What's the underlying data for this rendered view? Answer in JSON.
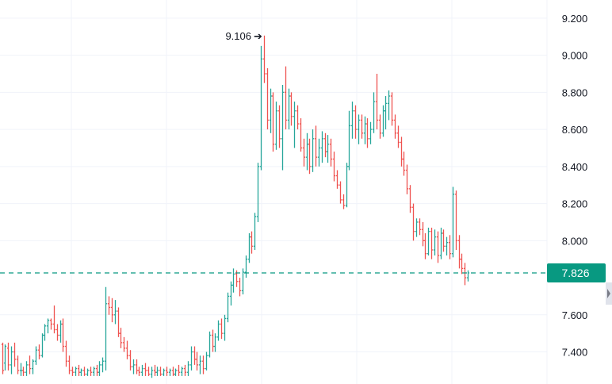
{
  "chart_data": {
    "type": "bar",
    "subtype": "ohlc",
    "colors": {
      "up": "#26a69a",
      "down": "#ef5350",
      "last_price": "#089981",
      "grid": "#f0f3fa",
      "text": "#131722"
    },
    "y_axis": {
      "ylim": [
        7.28,
        9.26
      ],
      "ticks": [
        "9.200",
        "9.000",
        "8.800",
        "8.600",
        "8.400",
        "8.200",
        "8.000",
        "7.600",
        "7.400"
      ],
      "position": "right"
    },
    "grid": true,
    "last_price": {
      "value": 7.826,
      "label": "7.826"
    },
    "peak": {
      "value": 9.106,
      "label": "9.106"
    },
    "bars": [
      {
        "o": 7.44,
        "h": 7.45,
        "l": 7.28,
        "c": 7.3
      },
      {
        "o": 7.34,
        "h": 7.44,
        "l": 7.3,
        "c": 7.43
      },
      {
        "o": 7.42,
        "h": 7.45,
        "l": 7.3,
        "c": 7.33
      },
      {
        "o": 7.33,
        "h": 7.43,
        "l": 7.28,
        "c": 7.4
      },
      {
        "o": 7.4,
        "h": 7.45,
        "l": 7.32,
        "c": 7.36
      },
      {
        "o": 7.36,
        "h": 7.38,
        "l": 7.28,
        "c": 7.3
      },
      {
        "o": 7.3,
        "h": 7.34,
        "l": 7.27,
        "c": 7.3
      },
      {
        "o": 7.3,
        "h": 7.32,
        "l": 7.27,
        "c": 7.29
      },
      {
        "o": 7.29,
        "h": 7.35,
        "l": 7.27,
        "c": 7.33
      },
      {
        "o": 7.33,
        "h": 7.38,
        "l": 7.28,
        "c": 7.31
      },
      {
        "o": 7.31,
        "h": 7.36,
        "l": 7.28,
        "c": 7.35
      },
      {
        "o": 7.35,
        "h": 7.43,
        "l": 7.33,
        "c": 7.41
      },
      {
        "o": 7.41,
        "h": 7.44,
        "l": 7.36,
        "c": 7.38
      },
      {
        "o": 7.38,
        "h": 7.5,
        "l": 7.37,
        "c": 7.49
      },
      {
        "o": 7.49,
        "h": 7.55,
        "l": 7.46,
        "c": 7.54
      },
      {
        "o": 7.54,
        "h": 7.58,
        "l": 7.5,
        "c": 7.57
      },
      {
        "o": 7.57,
        "h": 7.58,
        "l": 7.52,
        "c": 7.55
      },
      {
        "o": 7.55,
        "h": 7.65,
        "l": 7.5,
        "c": 7.52
      },
      {
        "o": 7.52,
        "h": 7.55,
        "l": 7.46,
        "c": 7.49
      },
      {
        "o": 7.49,
        "h": 7.57,
        "l": 7.45,
        "c": 7.55
      },
      {
        "o": 7.55,
        "h": 7.58,
        "l": 7.4,
        "c": 7.43
      },
      {
        "o": 7.43,
        "h": 7.46,
        "l": 7.32,
        "c": 7.35
      },
      {
        "o": 7.35,
        "h": 7.38,
        "l": 7.28,
        "c": 7.3
      },
      {
        "o": 7.3,
        "h": 7.32,
        "l": 7.27,
        "c": 7.29
      },
      {
        "o": 7.29,
        "h": 7.32,
        "l": 7.27,
        "c": 7.31
      },
      {
        "o": 7.31,
        "h": 7.33,
        "l": 7.27,
        "c": 7.29
      },
      {
        "o": 7.29,
        "h": 7.31,
        "l": 7.27,
        "c": 7.3
      },
      {
        "o": 7.3,
        "h": 7.32,
        "l": 7.27,
        "c": 7.28
      },
      {
        "o": 7.28,
        "h": 7.31,
        "l": 7.27,
        "c": 7.3
      },
      {
        "o": 7.3,
        "h": 7.32,
        "l": 7.27,
        "c": 7.29
      },
      {
        "o": 7.29,
        "h": 7.32,
        "l": 7.27,
        "c": 7.31
      },
      {
        "o": 7.31,
        "h": 7.33,
        "l": 7.27,
        "c": 7.29
      },
      {
        "o": 7.29,
        "h": 7.35,
        "l": 7.27,
        "c": 7.33
      },
      {
        "o": 7.33,
        "h": 7.37,
        "l": 7.29,
        "c": 7.35
      },
      {
        "o": 7.35,
        "h": 7.75,
        "l": 7.3,
        "c": 7.66
      },
      {
        "o": 7.66,
        "h": 7.7,
        "l": 7.6,
        "c": 7.64
      },
      {
        "o": 7.64,
        "h": 7.69,
        "l": 7.56,
        "c": 7.6
      },
      {
        "o": 7.6,
        "h": 7.68,
        "l": 7.55,
        "c": 7.62
      },
      {
        "o": 7.62,
        "h": 7.64,
        "l": 7.48,
        "c": 7.5
      },
      {
        "o": 7.5,
        "h": 7.53,
        "l": 7.42,
        "c": 7.45
      },
      {
        "o": 7.45,
        "h": 7.48,
        "l": 7.4,
        "c": 7.42
      },
      {
        "o": 7.42,
        "h": 7.46,
        "l": 7.36,
        "c": 7.38
      },
      {
        "o": 7.38,
        "h": 7.41,
        "l": 7.3,
        "c": 7.32
      },
      {
        "o": 7.32,
        "h": 7.36,
        "l": 7.28,
        "c": 7.33
      },
      {
        "o": 7.33,
        "h": 7.36,
        "l": 7.28,
        "c": 7.3
      },
      {
        "o": 7.3,
        "h": 7.32,
        "l": 7.27,
        "c": 7.29
      },
      {
        "o": 7.29,
        "h": 7.33,
        "l": 7.27,
        "c": 7.31
      },
      {
        "o": 7.31,
        "h": 7.34,
        "l": 7.27,
        "c": 7.3
      },
      {
        "o": 7.3,
        "h": 7.32,
        "l": 7.27,
        "c": 7.28
      },
      {
        "o": 7.28,
        "h": 7.32,
        "l": 7.26,
        "c": 7.3
      },
      {
        "o": 7.3,
        "h": 7.33,
        "l": 7.27,
        "c": 7.29
      },
      {
        "o": 7.29,
        "h": 7.32,
        "l": 7.27,
        "c": 7.3
      },
      {
        "o": 7.3,
        "h": 7.32,
        "l": 7.27,
        "c": 7.28
      },
      {
        "o": 7.28,
        "h": 7.31,
        "l": 7.27,
        "c": 7.3
      },
      {
        "o": 7.3,
        "h": 7.32,
        "l": 7.27,
        "c": 7.29
      },
      {
        "o": 7.29,
        "h": 7.31,
        "l": 7.27,
        "c": 7.3
      },
      {
        "o": 7.3,
        "h": 7.32,
        "l": 7.27,
        "c": 7.28
      },
      {
        "o": 7.28,
        "h": 7.31,
        "l": 7.27,
        "c": 7.3
      },
      {
        "o": 7.3,
        "h": 7.33,
        "l": 7.27,
        "c": 7.29
      },
      {
        "o": 7.29,
        "h": 7.32,
        "l": 7.27,
        "c": 7.31
      },
      {
        "o": 7.31,
        "h": 7.33,
        "l": 7.27,
        "c": 7.29
      },
      {
        "o": 7.29,
        "h": 7.35,
        "l": 7.27,
        "c": 7.33
      },
      {
        "o": 7.33,
        "h": 7.43,
        "l": 7.3,
        "c": 7.4
      },
      {
        "o": 7.4,
        "h": 7.43,
        "l": 7.33,
        "c": 7.36
      },
      {
        "o": 7.36,
        "h": 7.4,
        "l": 7.3,
        "c": 7.33
      },
      {
        "o": 7.33,
        "h": 7.38,
        "l": 7.28,
        "c": 7.35
      },
      {
        "o": 7.35,
        "h": 7.38,
        "l": 7.28,
        "c": 7.31
      },
      {
        "o": 7.31,
        "h": 7.4,
        "l": 7.3,
        "c": 7.38
      },
      {
        "o": 7.38,
        "h": 7.51,
        "l": 7.37,
        "c": 7.49
      },
      {
        "o": 7.49,
        "h": 7.52,
        "l": 7.4,
        "c": 7.43
      },
      {
        "o": 7.43,
        "h": 7.5,
        "l": 7.4,
        "c": 7.48
      },
      {
        "o": 7.48,
        "h": 7.57,
        "l": 7.46,
        "c": 7.55
      },
      {
        "o": 7.55,
        "h": 7.58,
        "l": 7.47,
        "c": 7.5
      },
      {
        "o": 7.5,
        "h": 7.6,
        "l": 7.46,
        "c": 7.58
      },
      {
        "o": 7.58,
        "h": 7.72,
        "l": 7.56,
        "c": 7.7
      },
      {
        "o": 7.7,
        "h": 7.78,
        "l": 7.65,
        "c": 7.76
      },
      {
        "o": 7.76,
        "h": 7.85,
        "l": 7.72,
        "c": 7.82
      },
      {
        "o": 7.82,
        "h": 7.84,
        "l": 7.75,
        "c": 7.78
      },
      {
        "o": 7.78,
        "h": 7.8,
        "l": 7.7,
        "c": 7.73
      },
      {
        "o": 7.73,
        "h": 7.85,
        "l": 7.71,
        "c": 7.83
      },
      {
        "o": 7.83,
        "h": 7.92,
        "l": 7.8,
        "c": 7.9
      },
      {
        "o": 7.9,
        "h": 8.04,
        "l": 7.88,
        "c": 8.02
      },
      {
        "o": 8.02,
        "h": 8.05,
        "l": 7.93,
        "c": 7.97
      },
      {
        "o": 7.97,
        "h": 8.15,
        "l": 7.95,
        "c": 8.13
      },
      {
        "o": 8.13,
        "h": 8.42,
        "l": 8.1,
        "c": 8.4
      },
      {
        "o": 8.4,
        "h": 9.05,
        "l": 8.38,
        "c": 8.98
      },
      {
        "o": 8.98,
        "h": 9.106,
        "l": 8.85,
        "c": 8.9
      },
      {
        "o": 8.9,
        "h": 8.93,
        "l": 8.6,
        "c": 8.65
      },
      {
        "o": 8.65,
        "h": 8.82,
        "l": 8.58,
        "c": 8.78
      },
      {
        "o": 8.78,
        "h": 8.8,
        "l": 8.48,
        "c": 8.52
      },
      {
        "o": 8.52,
        "h": 8.75,
        "l": 8.49,
        "c": 8.7
      },
      {
        "o": 8.7,
        "h": 8.73,
        "l": 8.5,
        "c": 8.55
      },
      {
        "o": 8.55,
        "h": 8.84,
        "l": 8.38,
        "c": 8.8
      },
      {
        "o": 8.8,
        "h": 8.94,
        "l": 8.6,
        "c": 8.65
      },
      {
        "o": 8.65,
        "h": 8.82,
        "l": 8.6,
        "c": 8.78
      },
      {
        "o": 8.78,
        "h": 8.8,
        "l": 8.62,
        "c": 8.67
      },
      {
        "o": 8.67,
        "h": 8.75,
        "l": 8.5,
        "c": 8.7
      },
      {
        "o": 8.7,
        "h": 8.73,
        "l": 8.6,
        "c": 8.63
      },
      {
        "o": 8.63,
        "h": 8.66,
        "l": 8.48,
        "c": 8.5
      },
      {
        "o": 8.5,
        "h": 8.55,
        "l": 8.4,
        "c": 8.45
      },
      {
        "o": 8.45,
        "h": 8.58,
        "l": 8.38,
        "c": 8.52
      },
      {
        "o": 8.52,
        "h": 8.55,
        "l": 8.36,
        "c": 8.4
      },
      {
        "o": 8.4,
        "h": 8.6,
        "l": 8.37,
        "c": 8.55
      },
      {
        "o": 8.55,
        "h": 8.62,
        "l": 8.4,
        "c": 8.45
      },
      {
        "o": 8.45,
        "h": 8.55,
        "l": 8.4,
        "c": 8.5
      },
      {
        "o": 8.5,
        "h": 8.59,
        "l": 8.42,
        "c": 8.55
      },
      {
        "o": 8.55,
        "h": 8.58,
        "l": 8.45,
        "c": 8.48
      },
      {
        "o": 8.48,
        "h": 8.57,
        "l": 8.42,
        "c": 8.52
      },
      {
        "o": 8.52,
        "h": 8.55,
        "l": 8.4,
        "c": 8.44
      },
      {
        "o": 8.44,
        "h": 8.48,
        "l": 8.32,
        "c": 8.35
      },
      {
        "o": 8.35,
        "h": 8.38,
        "l": 8.28,
        "c": 8.3
      },
      {
        "o": 8.3,
        "h": 8.32,
        "l": 8.2,
        "c": 8.22
      },
      {
        "o": 8.22,
        "h": 8.25,
        "l": 8.17,
        "c": 8.19
      },
      {
        "o": 8.19,
        "h": 8.42,
        "l": 8.18,
        "c": 8.4
      },
      {
        "o": 8.4,
        "h": 8.7,
        "l": 8.38,
        "c": 8.62
      },
      {
        "o": 8.62,
        "h": 8.75,
        "l": 8.55,
        "c": 8.7
      },
      {
        "o": 8.7,
        "h": 8.73,
        "l": 8.55,
        "c": 8.6
      },
      {
        "o": 8.6,
        "h": 8.68,
        "l": 8.52,
        "c": 8.65
      },
      {
        "o": 8.65,
        "h": 8.68,
        "l": 8.55,
        "c": 8.58
      },
      {
        "o": 8.58,
        "h": 8.67,
        "l": 8.52,
        "c": 8.63
      },
      {
        "o": 8.63,
        "h": 8.66,
        "l": 8.5,
        "c": 8.55
      },
      {
        "o": 8.55,
        "h": 8.64,
        "l": 8.52,
        "c": 8.6
      },
      {
        "o": 8.6,
        "h": 8.8,
        "l": 8.58,
        "c": 8.75
      },
      {
        "o": 8.75,
        "h": 8.9,
        "l": 8.6,
        "c": 8.65
      },
      {
        "o": 8.65,
        "h": 8.68,
        "l": 8.55,
        "c": 8.58
      },
      {
        "o": 8.58,
        "h": 8.73,
        "l": 8.56,
        "c": 8.7
      },
      {
        "o": 8.7,
        "h": 8.78,
        "l": 8.6,
        "c": 8.74
      },
      {
        "o": 8.74,
        "h": 8.81,
        "l": 8.65,
        "c": 8.78
      },
      {
        "o": 8.78,
        "h": 8.8,
        "l": 8.62,
        "c": 8.65
      },
      {
        "o": 8.65,
        "h": 8.68,
        "l": 8.55,
        "c": 8.58
      },
      {
        "o": 8.58,
        "h": 8.62,
        "l": 8.5,
        "c": 8.53
      },
      {
        "o": 8.53,
        "h": 8.56,
        "l": 8.4,
        "c": 8.44
      },
      {
        "o": 8.44,
        "h": 8.48,
        "l": 8.35,
        "c": 8.38
      },
      {
        "o": 8.38,
        "h": 8.41,
        "l": 8.25,
        "c": 8.28
      },
      {
        "o": 8.28,
        "h": 8.3,
        "l": 8.15,
        "c": 8.18
      },
      {
        "o": 8.18,
        "h": 8.2,
        "l": 8.0,
        "c": 8.05
      },
      {
        "o": 8.05,
        "h": 8.12,
        "l": 8.02,
        "c": 8.1
      },
      {
        "o": 8.1,
        "h": 8.12,
        "l": 8.03,
        "c": 8.06
      },
      {
        "o": 8.06,
        "h": 8.1,
        "l": 7.97,
        "c": 8.0
      },
      {
        "o": 8.0,
        "h": 8.04,
        "l": 7.9,
        "c": 7.93
      },
      {
        "o": 7.93,
        "h": 8.07,
        "l": 7.92,
        "c": 8.05
      },
      {
        "o": 8.05,
        "h": 8.07,
        "l": 7.9,
        "c": 7.95
      },
      {
        "o": 7.95,
        "h": 8.06,
        "l": 7.92,
        "c": 8.02
      },
      {
        "o": 8.02,
        "h": 8.05,
        "l": 7.88,
        "c": 7.92
      },
      {
        "o": 7.92,
        "h": 8.07,
        "l": 7.9,
        "c": 8.04
      },
      {
        "o": 8.04,
        "h": 8.06,
        "l": 7.94,
        "c": 7.97
      },
      {
        "o": 7.97,
        "h": 8.02,
        "l": 7.92,
        "c": 7.99
      },
      {
        "o": 7.99,
        "h": 8.03,
        "l": 7.9,
        "c": 7.93
      },
      {
        "o": 7.93,
        "h": 8.29,
        "l": 7.91,
        "c": 8.25
      },
      {
        "o": 8.25,
        "h": 8.27,
        "l": 7.95,
        "c": 8.0
      },
      {
        "o": 8.0,
        "h": 8.03,
        "l": 7.85,
        "c": 7.9
      },
      {
        "o": 7.9,
        "h": 7.93,
        "l": 7.82,
        "c": 7.85
      },
      {
        "o": 7.85,
        "h": 7.88,
        "l": 7.76,
        "c": 7.8
      },
      {
        "o": 7.8,
        "h": 7.84,
        "l": 7.78,
        "c": 7.826
      }
    ]
  }
}
